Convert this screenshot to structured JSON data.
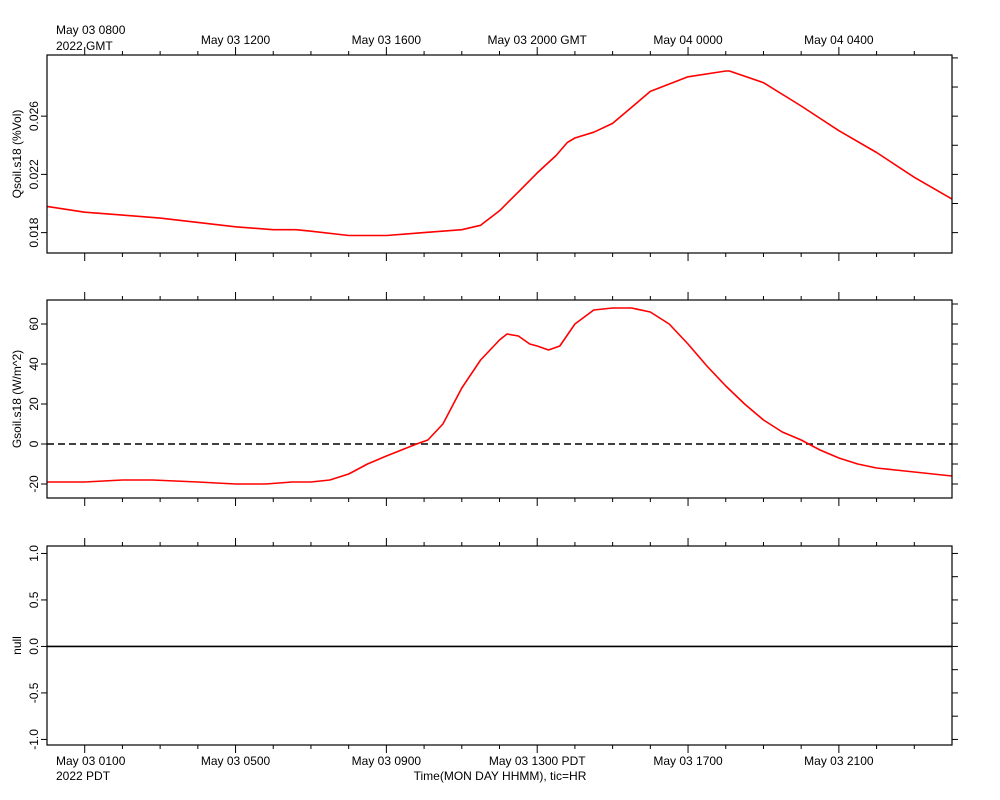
{
  "chart_data": [
    {
      "type": "line",
      "ylabel": "Qsoil.s18 (%Vol)",
      "ylim": [
        0.0166,
        0.0302
      ],
      "yticks": [
        0.018,
        0.022,
        0.026
      ],
      "ytick_labels": [
        "0.018",
        "0.022",
        "0.026"
      ],
      "series": [
        {
          "color": "#ff0000",
          "x": [
            0,
            0.5,
            1,
            2,
            3,
            4,
            5,
            6,
            6.6,
            7,
            8,
            9,
            9.5,
            10,
            11,
            11.5,
            12,
            12.5,
            13,
            13.5,
            13.8,
            14,
            14.5,
            15,
            15.5,
            16,
            17,
            18,
            18.1,
            19,
            20,
            21,
            22,
            23,
            24
          ],
          "y": [
            0.0198,
            0.0196,
            0.0194,
            0.0192,
            0.019,
            0.0187,
            0.0184,
            0.0182,
            0.0182,
            0.0181,
            0.0178,
            0.0178,
            0.0179,
            0.018,
            0.0182,
            0.0185,
            0.0195,
            0.0208,
            0.0221,
            0.0233,
            0.0242,
            0.0245,
            0.0249,
            0.0255,
            0.0266,
            0.0277,
            0.0287,
            0.0291,
            0.0291,
            0.0283,
            0.0267,
            0.025,
            0.0235,
            0.0218,
            0.0203
          ]
        }
      ]
    },
    {
      "type": "line",
      "ylabel": "Gsoil.s18 (W/m^2)",
      "ylim": [
        -27,
        72
      ],
      "yticks": [
        -20,
        0,
        20,
        40,
        60
      ],
      "ytick_labels": [
        "-20",
        "0",
        "20",
        "40",
        "60"
      ],
      "zero_line": {
        "value": 0,
        "style": "dashed",
        "color": "#000000"
      },
      "series": [
        {
          "color": "#ff0000",
          "x": [
            0,
            1,
            2,
            2.8,
            4,
            5,
            5.8,
            6.5,
            7,
            7.5,
            8,
            8.5,
            9,
            9.4,
            9.8,
            10.1,
            10.5,
            11,
            11.5,
            12,
            12.2,
            12.5,
            12.8,
            13,
            13.3,
            13.6,
            14,
            14.5,
            15,
            15.5,
            16,
            16.5,
            17,
            17.5,
            18,
            18.5,
            19,
            19.5,
            20,
            20.5,
            21,
            21.5,
            22,
            22.5,
            23,
            24
          ],
          "y": [
            -19,
            -19,
            -18,
            -18,
            -19,
            -20,
            -20,
            -19,
            -19,
            -18,
            -15,
            -10,
            -6,
            -3,
            0,
            2,
            10,
            28,
            42,
            52,
            55,
            54,
            50,
            49,
            47,
            49,
            60,
            67,
            68,
            68,
            66,
            60,
            50,
            39,
            29,
            20,
            12,
            6,
            2,
            -3,
            -7,
            -10,
            -12,
            -13,
            -14,
            -16
          ]
        }
      ]
    },
    {
      "type": "line",
      "ylabel": "null",
      "ylim": [
        -1.06,
        1.08
      ],
      "yticks": [
        -1.0,
        -0.5,
        0.0,
        0.5,
        1.0
      ],
      "ytick_labels": [
        "-1.0",
        "-0.5",
        "0.0",
        "0.5",
        "1.0"
      ],
      "series": [
        {
          "color": "#000000",
          "x": [
            0,
            24
          ],
          "y": [
            0,
            0
          ]
        }
      ]
    }
  ],
  "time_axis": {
    "x_unit": "hours since May 03 0000 PDT",
    "xlim": [
      -0.0,
      24.0
    ],
    "tick_hours": [
      1,
      5,
      9,
      13,
      17,
      21
    ],
    "minor_ticks": [
      1,
      2,
      3,
      4,
      5,
      6,
      7,
      8,
      9,
      10,
      11,
      12,
      13,
      14,
      15,
      16,
      17,
      18,
      19,
      20,
      21,
      22,
      23
    ],
    "top_start_label": "May 03 0800",
    "top_start_year": "2022 GMT",
    "top_labels": [
      "May 03 1200",
      "May 03 1600",
      "May 03 2000 GMT",
      "May 04 0000",
      "May 04 0400"
    ],
    "top_label_hours": [
      5,
      9,
      13,
      17,
      21
    ],
    "bottom_labels": [
      "May 03 0100",
      "May 03 0500",
      "May 03 0900",
      "May 03 1300 PDT",
      "May 03 1700",
      "May 03 2100"
    ],
    "bottom_year": "2022 PDT",
    "xlabel": "Time(MON DAY HHMM), tic=HR"
  }
}
